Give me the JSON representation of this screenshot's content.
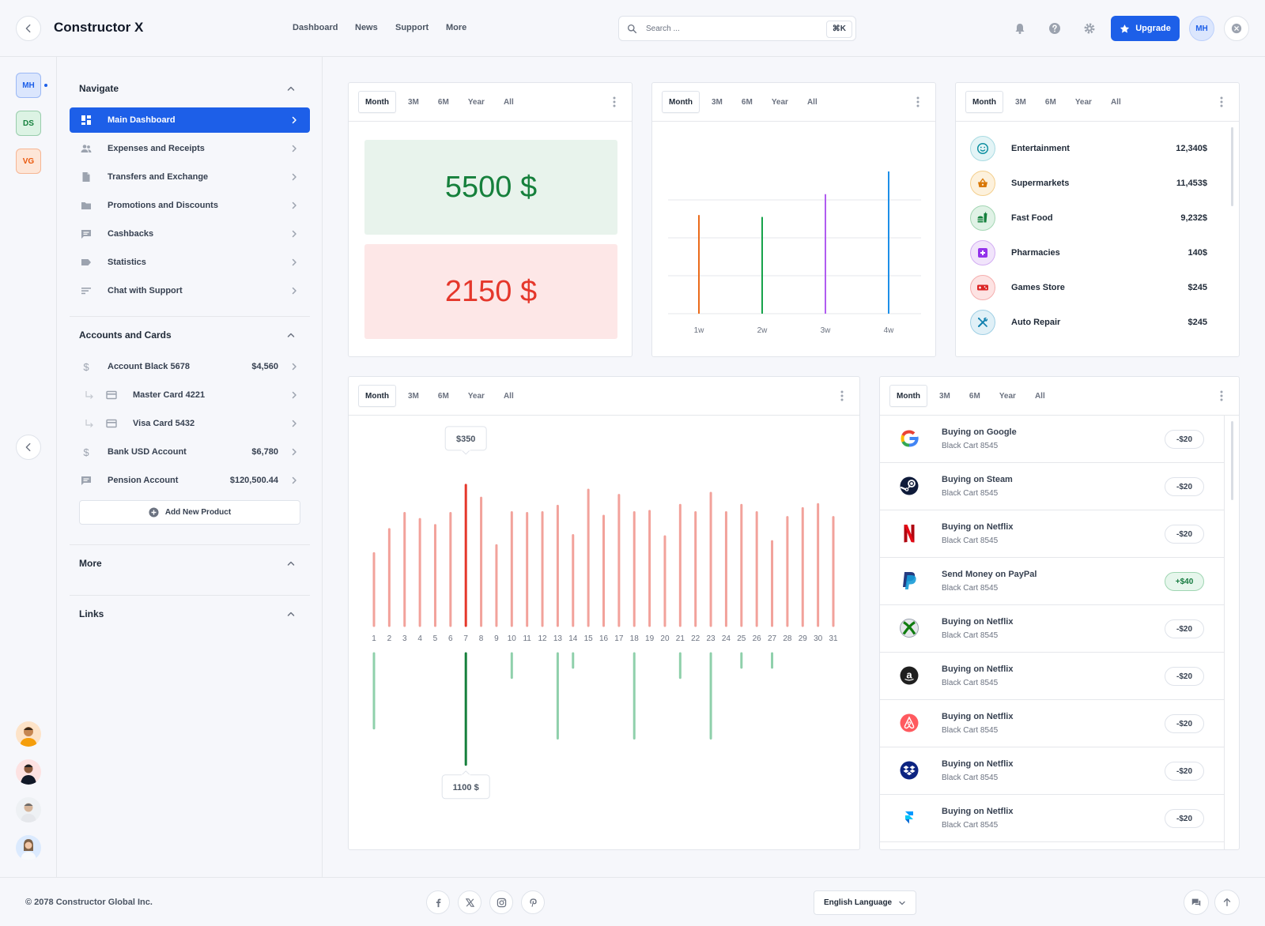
{
  "header": {
    "brand": "Constructor X",
    "nav": [
      "Dashboard",
      "News",
      "Support",
      "More"
    ],
    "search_placeholder": "Search ...",
    "search_shortcut": "⌘K",
    "upgrade_label": "Upgrade",
    "user_initials": "MH"
  },
  "rail": {
    "workspaces": [
      {
        "initials": "MH",
        "color": "#1d5fe8",
        "bg": "#dbe6fd"
      },
      {
        "initials": "DS",
        "color": "#15803d",
        "bg": "#dcf3e4"
      },
      {
        "initials": "VG",
        "color": "#ea580c",
        "bg": "#fde6d8"
      }
    ]
  },
  "sidebar": {
    "navigate_title": "Navigate",
    "nav_items": [
      {
        "label": "Main Dashboard",
        "icon": "dashboard-icon"
      },
      {
        "label": "Expenses and Receipts",
        "icon": "people-icon"
      },
      {
        "label": "Transfers and Exchange",
        "icon": "document-icon"
      },
      {
        "label": "Promotions and Discounts",
        "icon": "folder-icon"
      },
      {
        "label": "Cashbacks",
        "icon": "chat-icon"
      },
      {
        "label": "Statistics",
        "icon": "tag-icon"
      },
      {
        "label": "Chat with Support",
        "icon": "lines-icon"
      }
    ],
    "accounts_title": "Accounts and Cards",
    "accounts": [
      {
        "label": "Account Black 5678",
        "value": "$4,560"
      },
      {
        "label": "Master Card 4221",
        "value": ""
      },
      {
        "label": "Visa Card 5432",
        "value": ""
      },
      {
        "label": "Bank USD Account",
        "value": "$6,780"
      },
      {
        "label": "Pension Account",
        "value": "$120,500.44"
      }
    ],
    "add_product_label": "Add New Product",
    "more_title": "More",
    "links_title": "Links"
  },
  "tabs": [
    "Month",
    "3M",
    "6M",
    "Year",
    "All"
  ],
  "balance_card": {
    "income": "5500 $",
    "expense": "2150 $"
  },
  "weekly_chart": {
    "chart_data": {
      "type": "bar",
      "categories": [
        "1w",
        "2w",
        "3w",
        "4w"
      ],
      "values": [
        2.6,
        2.55,
        3.15,
        3.75
      ],
      "colors": [
        "#ea6b1a",
        "#16a34a",
        "#b05cf0",
        "#1d8fe8"
      ],
      "ylim": [
        0,
        4
      ]
    }
  },
  "categories": [
    {
      "name": "Entertainment",
      "value": "12,340$",
      "icon": "smile-icon",
      "color": "#0e8fa0",
      "bg": "#e3f4f6"
    },
    {
      "name": "Supermarkets",
      "value": "11,453$",
      "icon": "basket-icon",
      "color": "#d97706",
      "bg": "#fdf1dc"
    },
    {
      "name": "Fast Food",
      "value": "9,232$",
      "icon": "fastfood-icon",
      "color": "#15803d",
      "bg": "#e0f2e6"
    },
    {
      "name": "Pharmacies",
      "value": "140$",
      "icon": "pharmacy-icon",
      "color": "#9333ea",
      "bg": "#f1e4fb"
    },
    {
      "name": "Games Store",
      "value": "$245",
      "icon": "gamepad-icon",
      "color": "#dc2626",
      "bg": "#fde3e3"
    },
    {
      "name": "Auto Repair",
      "value": "$245",
      "icon": "tools-icon",
      "color": "#0e7fae",
      "bg": "#e0f0f7"
    }
  ],
  "daily_chart": {
    "chart_data": {
      "type": "bar",
      "categories": [
        "1",
        "2",
        "3",
        "4",
        "5",
        "6",
        "7",
        "8",
        "9",
        "10",
        "11",
        "12",
        "13",
        "14",
        "15",
        "16",
        "17",
        "18",
        "19",
        "20",
        "21",
        "22",
        "23",
        "24",
        "25",
        "26",
        "27",
        "28",
        "29",
        "30",
        "31"
      ],
      "series": [
        {
          "name": "Expenses",
          "values": [
            180,
            240,
            280,
            265,
            250,
            280,
            350,
            318,
            200,
            282,
            280,
            282,
            298,
            225,
            338,
            273,
            325,
            282,
            285,
            222,
            300,
            282,
            330,
            282,
            300,
            282,
            210,
            270,
            292,
            302,
            270
          ]
        },
        {
          "name": "Income",
          "values": [
            740,
            0,
            0,
            0,
            0,
            0,
            1100,
            0,
            0,
            240,
            0,
            0,
            840,
            140,
            0,
            0,
            0,
            840,
            0,
            0,
            240,
            0,
            840,
            0,
            140,
            0,
            140,
            0,
            0,
            0,
            0
          ]
        }
      ],
      "highlight_index": 6,
      "tooltip_top": "$350",
      "tooltip_bottom": "1100 $"
    }
  },
  "transactions": [
    {
      "title": "Buying on Google",
      "sub": "Black Cart 8545",
      "amount": "-$20",
      "logo": "google-logo",
      "positive": false
    },
    {
      "title": "Buying on Steam",
      "sub": "Black Cart 8545",
      "amount": "-$20",
      "logo": "steam-logo",
      "positive": false
    },
    {
      "title": "Buying on Netflix",
      "sub": "Black Cart 8545",
      "amount": "-$20",
      "logo": "netflix-logo",
      "positive": false
    },
    {
      "title": "Send Money on PayPal",
      "sub": "Black Cart 8545",
      "amount": "+$40",
      "logo": "paypal-logo",
      "positive": true
    },
    {
      "title": "Buying on Netflix",
      "sub": "Black Cart 8545",
      "amount": "-$20",
      "logo": "xbox-logo",
      "positive": false
    },
    {
      "title": "Buying on Netflix",
      "sub": "Black Cart 8545",
      "amount": "-$20",
      "logo": "amazon-logo",
      "positive": false
    },
    {
      "title": "Buying on Netflix",
      "sub": "Black Cart 8545",
      "amount": "-$20",
      "logo": "airbnb-logo",
      "positive": false
    },
    {
      "title": "Buying on Netflix",
      "sub": "Black Cart 8545",
      "amount": "-$20",
      "logo": "dropbox-logo",
      "positive": false
    },
    {
      "title": "Buying on Netflix",
      "sub": "Black Cart 8545",
      "amount": "-$20",
      "logo": "framer-logo",
      "positive": false
    }
  ],
  "footer": {
    "copyright": "© 2078 Constructor Global Inc.",
    "language": "English Language"
  }
}
